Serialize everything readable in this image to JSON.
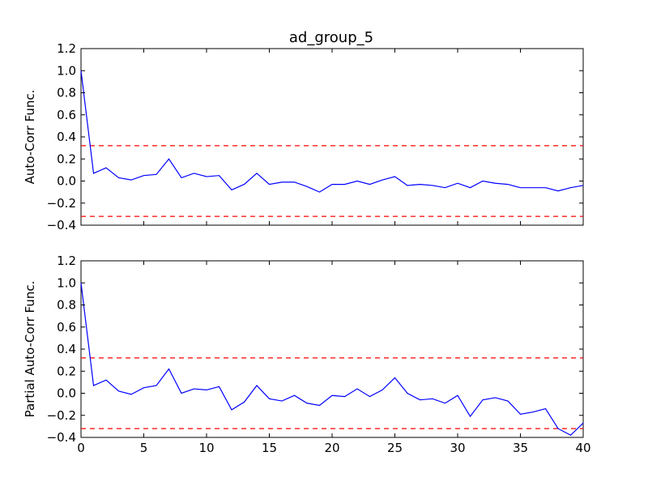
{
  "figure": {
    "title": "ad_group_5"
  },
  "colors": {
    "series": "#0000ff",
    "confidence": "#ff0000"
  },
  "chart_data": [
    {
      "type": "line",
      "ylabel": "Auto-Corr Func.",
      "xlabel": "",
      "xlim": [
        0,
        40
      ],
      "ylim": [
        -0.4,
        1.2
      ],
      "xticks": [],
      "yticks": [
        "1.2",
        "1.0",
        "0.8",
        "0.6",
        "0.4",
        "0.2",
        "0.0",
        "−0.2",
        "−0.4"
      ],
      "ytick_values": [
        1.2,
        1.0,
        0.8,
        0.6,
        0.4,
        0.2,
        0.0,
        -0.2,
        -0.4
      ],
      "confidence_bounds": [
        0.32,
        -0.32
      ],
      "grid": false,
      "series": [
        {
          "x": [
            0,
            1,
            2,
            3,
            4,
            5,
            6,
            7,
            8,
            9,
            10,
            11,
            12,
            13,
            14,
            15,
            16,
            17,
            18,
            19,
            20,
            21,
            22,
            23,
            24,
            25,
            26,
            27,
            28,
            29,
            30,
            31,
            32,
            33,
            34,
            35,
            36,
            37,
            38,
            39,
            40
          ],
          "values": [
            1.0,
            0.07,
            0.12,
            0.03,
            0.01,
            0.05,
            0.06,
            0.2,
            0.03,
            0.07,
            0.04,
            0.05,
            -0.08,
            -0.03,
            0.07,
            -0.03,
            -0.01,
            -0.01,
            -0.05,
            -0.1,
            -0.03,
            -0.03,
            0.0,
            -0.03,
            0.01,
            0.04,
            -0.04,
            -0.03,
            -0.04,
            -0.06,
            -0.02,
            -0.06,
            0.0,
            -0.02,
            -0.03,
            -0.06,
            -0.06,
            -0.06,
            -0.09,
            -0.06,
            -0.04
          ]
        }
      ]
    },
    {
      "type": "line",
      "ylabel": "Partial Auto-Corr Func.",
      "xlabel": "",
      "xlim": [
        0,
        40
      ],
      "ylim": [
        -0.4,
        1.2
      ],
      "xticks": [
        "0",
        "5",
        "10",
        "15",
        "20",
        "25",
        "30",
        "35",
        "40"
      ],
      "xtick_values": [
        0,
        5,
        10,
        15,
        20,
        25,
        30,
        35,
        40
      ],
      "yticks": [
        "1.2",
        "1.0",
        "0.8",
        "0.6",
        "0.4",
        "0.2",
        "0.0",
        "−0.2",
        "−0.4"
      ],
      "ytick_values": [
        1.2,
        1.0,
        0.8,
        0.6,
        0.4,
        0.2,
        0.0,
        -0.2,
        -0.4
      ],
      "confidence_bounds": [
        0.32,
        -0.32
      ],
      "grid": false,
      "series": [
        {
          "x": [
            0,
            1,
            2,
            3,
            4,
            5,
            6,
            7,
            8,
            9,
            10,
            11,
            12,
            13,
            14,
            15,
            16,
            17,
            18,
            19,
            20,
            21,
            22,
            23,
            24,
            25,
            26,
            27,
            28,
            29,
            30,
            31,
            32,
            33,
            34,
            35,
            36,
            37,
            38,
            39,
            40
          ],
          "values": [
            1.0,
            0.07,
            0.12,
            0.02,
            -0.01,
            0.05,
            0.07,
            0.22,
            0.0,
            0.04,
            0.03,
            0.06,
            -0.15,
            -0.08,
            0.07,
            -0.05,
            -0.07,
            -0.02,
            -0.09,
            -0.11,
            -0.02,
            -0.03,
            0.04,
            -0.03,
            0.03,
            0.14,
            0.0,
            -0.06,
            -0.05,
            -0.09,
            -0.02,
            -0.21,
            -0.06,
            -0.04,
            -0.07,
            -0.19,
            -0.17,
            -0.14,
            -0.32,
            -0.38,
            -0.27
          ]
        }
      ]
    }
  ]
}
